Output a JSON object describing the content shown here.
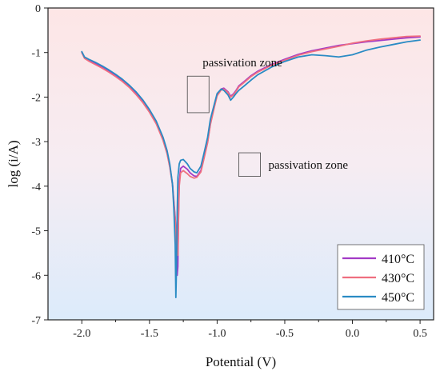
{
  "chart_data": {
    "type": "line",
    "title": "",
    "xlabel": "Potential (V)",
    "ylabel": "log (i/A)",
    "xlim": [
      -2.25,
      0.6
    ],
    "ylim": [
      -7,
      0
    ],
    "xticks": [
      -2.0,
      -1.5,
      -1.0,
      -0.5,
      0.0,
      0.5
    ],
    "xtick_labels": [
      "-2.0",
      "-1.5",
      "-1.0",
      "-0.5",
      "0.0",
      "0.5"
    ],
    "yticks": [
      0,
      -1,
      -2,
      -3,
      -4,
      -5,
      -6,
      -7
    ],
    "ytick_labels": [
      "0",
      "-1",
      "-2",
      "-3",
      "-4",
      "-5",
      "-6",
      "-7"
    ],
    "background": "vertical gradient, pink at top to light blue at bottom",
    "legend_position": "bottom-right",
    "series": [
      {
        "name": "410°C",
        "color": "#a33bc6",
        "x": [
          -2.0,
          -1.98,
          -1.95,
          -1.9,
          -1.85,
          -1.8,
          -1.75,
          -1.7,
          -1.65,
          -1.6,
          -1.55,
          -1.5,
          -1.45,
          -1.4,
          -1.37,
          -1.35,
          -1.33,
          -1.31,
          -1.3,
          -1.295,
          -1.29,
          -1.285,
          -1.28,
          -1.27,
          -1.25,
          -1.22,
          -1.2,
          -1.17,
          -1.15,
          -1.12,
          -1.1,
          -1.07,
          -1.05,
          -1.02,
          -1.0,
          -0.97,
          -0.95,
          -0.92,
          -0.9,
          -0.88,
          -0.86,
          -0.84,
          -0.8,
          -0.75,
          -0.7,
          -0.6,
          -0.5,
          -0.4,
          -0.3,
          -0.2,
          -0.1,
          0.0,
          0.1,
          0.2,
          0.3,
          0.4,
          0.5
        ],
        "y": [
          -1.0,
          -1.12,
          -1.17,
          -1.25,
          -1.33,
          -1.42,
          -1.52,
          -1.63,
          -1.76,
          -1.92,
          -2.1,
          -2.32,
          -2.58,
          -2.95,
          -3.25,
          -3.55,
          -3.95,
          -4.7,
          -5.3,
          -6.0,
          -5.8,
          -4.6,
          -3.9,
          -3.6,
          -3.55,
          -3.62,
          -3.7,
          -3.77,
          -3.78,
          -3.65,
          -3.4,
          -3.0,
          -2.6,
          -2.2,
          -1.95,
          -1.82,
          -1.8,
          -1.88,
          -1.98,
          -1.93,
          -1.85,
          -1.75,
          -1.65,
          -1.52,
          -1.42,
          -1.27,
          -1.15,
          -1.04,
          -0.96,
          -0.9,
          -0.84,
          -0.8,
          -0.76,
          -0.73,
          -0.7,
          -0.67,
          -0.65
        ]
      },
      {
        "name": "430°C",
        "color": "#ef6f80",
        "x": [
          -2.0,
          -1.98,
          -1.95,
          -1.9,
          -1.85,
          -1.8,
          -1.75,
          -1.7,
          -1.65,
          -1.6,
          -1.55,
          -1.5,
          -1.45,
          -1.4,
          -1.37,
          -1.35,
          -1.33,
          -1.31,
          -1.3,
          -1.29,
          -1.285,
          -1.28,
          -1.27,
          -1.25,
          -1.22,
          -1.2,
          -1.17,
          -1.15,
          -1.12,
          -1.1,
          -1.07,
          -1.05,
          -1.02,
          -1.0,
          -0.97,
          -0.95,
          -0.92,
          -0.9,
          -0.88,
          -0.86,
          -0.84,
          -0.8,
          -0.75,
          -0.7,
          -0.6,
          -0.5,
          -0.4,
          -0.3,
          -0.2,
          -0.1,
          0.0,
          0.1,
          0.2,
          0.3,
          0.4,
          0.5
        ],
        "y": [
          -1.0,
          -1.13,
          -1.19,
          -1.27,
          -1.35,
          -1.44,
          -1.54,
          -1.65,
          -1.78,
          -1.94,
          -2.12,
          -2.34,
          -2.6,
          -2.97,
          -3.27,
          -3.57,
          -3.97,
          -4.75,
          -5.3,
          -5.55,
          -4.7,
          -4.0,
          -3.7,
          -3.65,
          -3.72,
          -3.78,
          -3.82,
          -3.8,
          -3.68,
          -3.42,
          -3.02,
          -2.62,
          -2.22,
          -1.97,
          -1.84,
          -1.82,
          -1.9,
          -2.0,
          -1.95,
          -1.87,
          -1.77,
          -1.67,
          -1.54,
          -1.44,
          -1.29,
          -1.17,
          -1.06,
          -0.98,
          -0.92,
          -0.86,
          -0.79,
          -0.74,
          -0.7,
          -0.67,
          -0.64,
          -0.63
        ]
      },
      {
        "name": "450°C",
        "color": "#2a8bc4",
        "x": [
          -2.0,
          -1.98,
          -1.95,
          -1.9,
          -1.85,
          -1.8,
          -1.75,
          -1.7,
          -1.65,
          -1.6,
          -1.55,
          -1.5,
          -1.45,
          -1.4,
          -1.37,
          -1.35,
          -1.33,
          -1.32,
          -1.31,
          -1.305,
          -1.3,
          -1.295,
          -1.29,
          -1.28,
          -1.27,
          -1.25,
          -1.22,
          -1.2,
          -1.17,
          -1.15,
          -1.12,
          -1.1,
          -1.07,
          -1.05,
          -1.02,
          -1.0,
          -0.97,
          -0.95,
          -0.92,
          -0.9,
          -0.88,
          -0.86,
          -0.84,
          -0.8,
          -0.75,
          -0.7,
          -0.6,
          -0.5,
          -0.4,
          -0.3,
          -0.2,
          -0.1,
          0.0,
          0.1,
          0.2,
          0.3,
          0.4,
          0.5
        ],
        "y": [
          -0.98,
          -1.1,
          -1.15,
          -1.22,
          -1.3,
          -1.39,
          -1.49,
          -1.6,
          -1.73,
          -1.88,
          -2.06,
          -2.28,
          -2.54,
          -2.9,
          -3.2,
          -3.5,
          -3.95,
          -4.5,
          -5.3,
          -6.5,
          -5.8,
          -4.6,
          -3.8,
          -3.5,
          -3.42,
          -3.4,
          -3.5,
          -3.6,
          -3.68,
          -3.7,
          -3.55,
          -3.3,
          -2.9,
          -2.5,
          -2.15,
          -1.92,
          -1.82,
          -1.85,
          -1.95,
          -2.07,
          -2.0,
          -1.92,
          -1.85,
          -1.75,
          -1.62,
          -1.5,
          -1.33,
          -1.2,
          -1.1,
          -1.05,
          -1.07,
          -1.1,
          -1.05,
          -0.95,
          -0.88,
          -0.82,
          -0.76,
          -0.72
        ]
      }
    ],
    "annotations": [
      {
        "text": "passivation zone",
        "anchor": "upper",
        "box": {
          "x": [
            -1.22,
            -1.06
          ],
          "y": [
            -2.35,
            -1.53
          ]
        }
      },
      {
        "text": "passivation zone",
        "anchor": "lower",
        "box": {
          "x": [
            -0.84,
            -0.68
          ],
          "y": [
            -3.78,
            -3.25
          ]
        }
      }
    ]
  }
}
